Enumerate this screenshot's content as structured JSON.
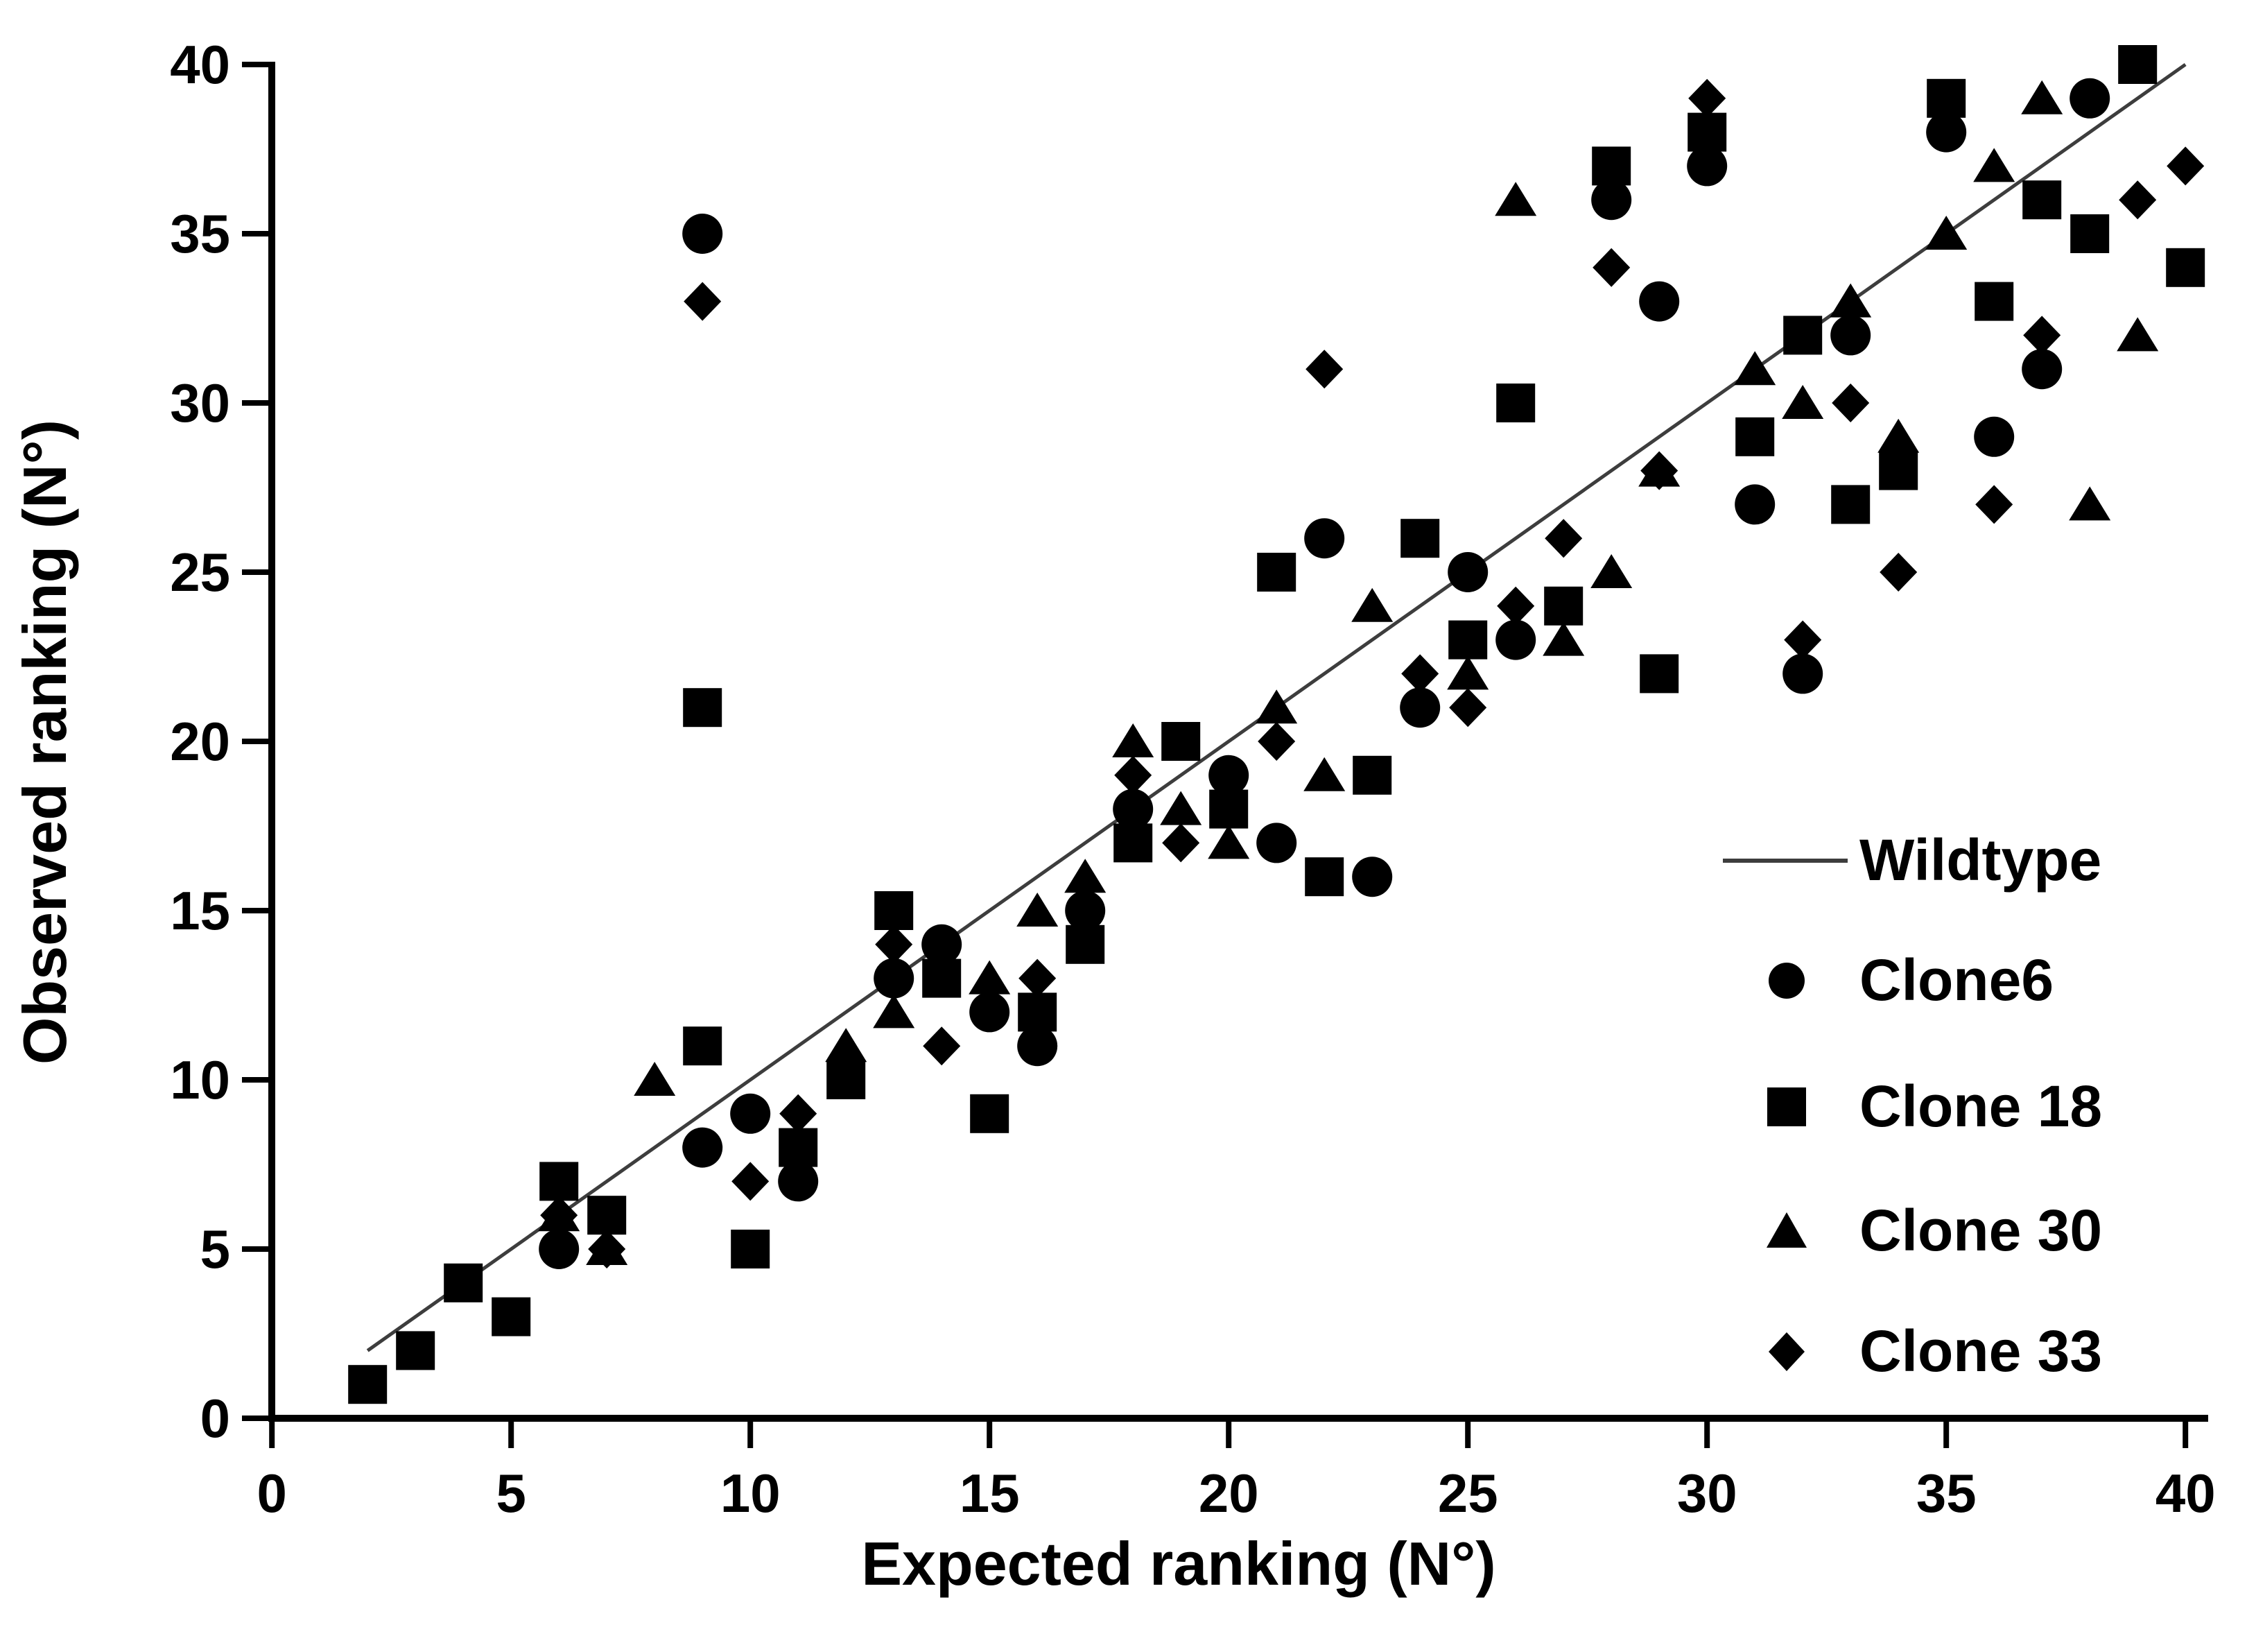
{
  "figure": {
    "background": "#ffffff",
    "marker_color": "#000000",
    "axis_color": "#000000",
    "line_color": "#3d3d3d"
  },
  "axes": {
    "x_title": "Expected ranking (N°)",
    "y_title": "Observed ranking (N°)"
  },
  "legend": {
    "items": [
      {
        "label": "Wildtype",
        "marker": "line"
      },
      {
        "label": "Clone6",
        "marker": "circle"
      },
      {
        "label": "Clone 18",
        "marker": "square"
      },
      {
        "label": "Clone 30",
        "marker": "triangle"
      },
      {
        "label": "Clone 33",
        "marker": "diamond"
      }
    ]
  },
  "chart_data": {
    "type": "scatter",
    "title": "",
    "xlabel": "Expected ranking (N°)",
    "ylabel": "Observed ranking (N°)",
    "xlim": [
      0,
      40
    ],
    "ylim": [
      0,
      40
    ],
    "xticks": [
      0,
      5,
      10,
      15,
      20,
      25,
      30,
      35,
      40
    ],
    "yticks": [
      0,
      5,
      10,
      15,
      20,
      25,
      30,
      35,
      40
    ],
    "grid": false,
    "legend_position": "lower right",
    "reference_line": {
      "name": "Wildtype",
      "x1": 2,
      "y1": 2,
      "x2": 40,
      "y2": 40
    },
    "series": [
      {
        "name": "Clone6",
        "marker": "circle",
        "points": [
          [
            6,
            5
          ],
          [
            9,
            8
          ],
          [
            9,
            35
          ],
          [
            10,
            9
          ],
          [
            11,
            7
          ],
          [
            13,
            13
          ],
          [
            14,
            14
          ],
          [
            15,
            12
          ],
          [
            16,
            11
          ],
          [
            17,
            15
          ],
          [
            18,
            18
          ],
          [
            20,
            19
          ],
          [
            21,
            17
          ],
          [
            22,
            26
          ],
          [
            23,
            16
          ],
          [
            24,
            21
          ],
          [
            25,
            25
          ],
          [
            26,
            23
          ],
          [
            28,
            36
          ],
          [
            29,
            33
          ],
          [
            30,
            37
          ],
          [
            31,
            27
          ],
          [
            32,
            22
          ],
          [
            33,
            32
          ],
          [
            35,
            38
          ],
          [
            36,
            29
          ],
          [
            37,
            31
          ],
          [
            38,
            39
          ]
        ]
      },
      {
        "name": "Clone 18",
        "marker": "square",
        "points": [
          [
            2,
            1
          ],
          [
            3,
            2
          ],
          [
            4,
            4
          ],
          [
            5,
            3
          ],
          [
            6,
            7
          ],
          [
            7,
            6
          ],
          [
            9,
            11
          ],
          [
            9,
            21
          ],
          [
            10,
            5
          ],
          [
            11,
            8
          ],
          [
            12,
            10
          ],
          [
            13,
            15
          ],
          [
            14,
            13
          ],
          [
            15,
            9
          ],
          [
            16,
            12
          ],
          [
            17,
            14
          ],
          [
            18,
            17
          ],
          [
            19,
            20
          ],
          [
            20,
            18
          ],
          [
            21,
            25
          ],
          [
            22,
            16
          ],
          [
            23,
            19
          ],
          [
            24,
            26
          ],
          [
            25,
            23
          ],
          [
            26,
            30
          ],
          [
            27,
            24
          ],
          [
            28,
            37
          ],
          [
            29,
            22
          ],
          [
            30,
            38
          ],
          [
            31,
            29
          ],
          [
            32,
            32
          ],
          [
            33,
            27
          ],
          [
            34,
            28
          ],
          [
            35,
            39
          ],
          [
            36,
            33
          ],
          [
            37,
            36
          ],
          [
            38,
            35
          ],
          [
            39,
            40
          ],
          [
            40,
            34
          ]
        ]
      },
      {
        "name": "Clone 30",
        "marker": "triangle",
        "points": [
          [
            6,
            6
          ],
          [
            7,
            5
          ],
          [
            8,
            10
          ],
          [
            12,
            11
          ],
          [
            13,
            12
          ],
          [
            15,
            13
          ],
          [
            16,
            15
          ],
          [
            17,
            16
          ],
          [
            18,
            20
          ],
          [
            19,
            18
          ],
          [
            20,
            17
          ],
          [
            21,
            21
          ],
          [
            22,
            19
          ],
          [
            23,
            24
          ],
          [
            25,
            22
          ],
          [
            26,
            36
          ],
          [
            27,
            23
          ],
          [
            28,
            25
          ],
          [
            29,
            28
          ],
          [
            31,
            31
          ],
          [
            32,
            30
          ],
          [
            33,
            33
          ],
          [
            34,
            29
          ],
          [
            35,
            35
          ],
          [
            36,
            37
          ],
          [
            37,
            39
          ],
          [
            38,
            27
          ],
          [
            39,
            32
          ]
        ]
      },
      {
        "name": "Clone 33",
        "marker": "diamond",
        "points": [
          [
            6,
            6
          ],
          [
            7,
            5
          ],
          [
            9,
            33
          ],
          [
            10,
            7
          ],
          [
            11,
            9
          ],
          [
            13,
            14
          ],
          [
            14,
            11
          ],
          [
            16,
            13
          ],
          [
            18,
            19
          ],
          [
            19,
            17
          ],
          [
            21,
            20
          ],
          [
            22,
            31
          ],
          [
            24,
            22
          ],
          [
            25,
            21
          ],
          [
            26,
            24
          ],
          [
            27,
            26
          ],
          [
            28,
            34
          ],
          [
            29,
            28
          ],
          [
            30,
            39
          ],
          [
            32,
            23
          ],
          [
            33,
            30
          ],
          [
            34,
            25
          ],
          [
            36,
            27
          ],
          [
            37,
            32
          ],
          [
            39,
            36
          ],
          [
            40,
            37
          ]
        ]
      }
    ]
  }
}
